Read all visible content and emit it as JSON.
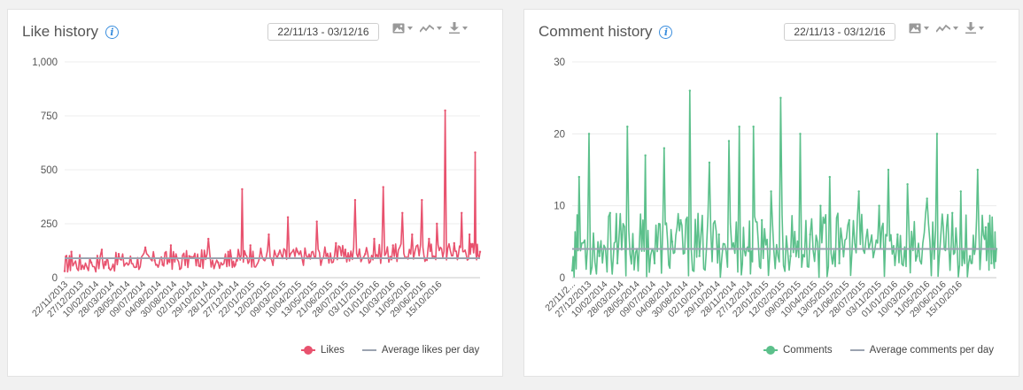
{
  "panels": [
    {
      "title": "Like history",
      "date_range": "22/11/13 - 03/12/16",
      "icons": [
        "info-icon",
        "image-icon",
        "line-chart-icon",
        "download-icon"
      ],
      "legend": {
        "series": "Likes",
        "average": "Average likes per day"
      },
      "colors": {
        "series": "#e8526e",
        "average": "#9ba3b0"
      }
    },
    {
      "title": "Comment history",
      "date_range": "22/11/13 - 03/12/16",
      "icons": [
        "info-icon",
        "image-icon",
        "line-chart-icon",
        "download-icon"
      ],
      "legend": {
        "series": "Comments",
        "average": "Average comments per day"
      },
      "colors": {
        "series": "#5cc08b",
        "average": "#9ba3b0"
      }
    }
  ],
  "chart_data": [
    {
      "type": "line",
      "title": "Like history",
      "ylim": [
        0,
        1000
      ],
      "yticks": [
        0,
        250,
        500,
        750,
        1000
      ],
      "ytick_labels": [
        "0",
        "250",
        "500",
        "750",
        "1,000"
      ],
      "xlim": [
        "2013-11-22",
        "2016-12-03"
      ],
      "xtick_labels": [
        "22/11/2013",
        "27/12/2013",
        "10/02/2014",
        "28/03/2014",
        "28/05/2014",
        "09/07/2014",
        "04/08/2014",
        "30/08/2014",
        "02/10/2014",
        "29/10/2014",
        "28/11/2014",
        "27/12/2014",
        "22/01/2015",
        "12/02/2015",
        "09/03/2015",
        "10/04/2015",
        "13/05/2015",
        "21/06/2015",
        "28/07/2015",
        "03/11/2015",
        "01/01/2016",
        "10/03/2016",
        "11/05/2016",
        "29/06/2016",
        "15/10/2016"
      ],
      "grid": true,
      "legend_position": "bottom-right",
      "average": 90,
      "series": [
        {
          "name": "Likes",
          "color": "#e8526e",
          "x": [
            "2013-11-22",
            "2013-12-10",
            "2014-01-05",
            "2014-02-01",
            "2014-03-01",
            "2014-03-20",
            "2014-04-15",
            "2014-05-10",
            "2014-06-01",
            "2014-06-25",
            "2014-07-20",
            "2014-08-10",
            "2014-09-01",
            "2014-09-25",
            "2014-10-20",
            "2014-11-15",
            "2014-12-10",
            "2015-01-05",
            "2015-02-01",
            "2015-02-20",
            "2015-03-10",
            "2015-04-01",
            "2015-04-25",
            "2015-05-20",
            "2015-06-15",
            "2015-07-10",
            "2015-08-05",
            "2015-09-01",
            "2015-09-25",
            "2015-10-20",
            "2015-11-15",
            "2015-12-10",
            "2016-01-05",
            "2016-02-01",
            "2016-02-25",
            "2016-03-20",
            "2016-04-15",
            "2016-05-10",
            "2016-06-05",
            "2016-07-01",
            "2016-07-20",
            "2016-08-10",
            "2016-09-01",
            "2016-09-25",
            "2016-10-15",
            "2016-11-05",
            "2016-11-20",
            "2016-12-03"
          ],
          "y": [
            30,
            120,
            40,
            70,
            130,
            45,
            110,
            60,
            50,
            140,
            80,
            60,
            150,
            40,
            100,
            55,
            180,
            70,
            120,
            60,
            410,
            150,
            90,
            200,
            110,
            280,
            120,
            90,
            260,
            100,
            160,
            130,
            360,
            110,
            180,
            420,
            150,
            300,
            200,
            360,
            180,
            250,
            775,
            160,
            300,
            200,
            580,
            120
          ]
        }
      ]
    },
    {
      "type": "line",
      "title": "Comment history",
      "ylim": [
        0,
        30
      ],
      "yticks": [
        0,
        10,
        20,
        30
      ],
      "ytick_labels": [
        "0",
        "10",
        "20",
        "30"
      ],
      "xlim": [
        "2013-11-22",
        "2016-12-03"
      ],
      "xtick_labels": [
        "22/11/2...",
        "27/12/2013",
        "10/02/2014",
        "28/03/2014",
        "28/05/2014",
        "09/07/2014",
        "04/08/2014",
        "30/08/2014",
        "02/10/2014",
        "29/10/2014",
        "28/11/2014",
        "27/12/2014",
        "22/01/2015",
        "12/02/2015",
        "09/03/2015",
        "10/04/2015",
        "13/05/2015",
        "21/06/2015",
        "28/07/2015",
        "03/11/2015",
        "01/01/2016",
        "10/03/2016",
        "11/05/2016",
        "29/06/2016",
        "15/10/2016"
      ],
      "grid": true,
      "legend_position": "bottom-right",
      "average": 4,
      "series": [
        {
          "name": "Comments",
          "color": "#5cc08b",
          "x": [
            "2013-11-22",
            "2013-12-10",
            "2014-01-05",
            "2014-02-01",
            "2014-03-01",
            "2014-03-20",
            "2014-04-15",
            "2014-05-10",
            "2014-06-01",
            "2014-06-25",
            "2014-07-20",
            "2014-08-10",
            "2014-09-01",
            "2014-09-25",
            "2014-10-20",
            "2014-11-15",
            "2014-12-10",
            "2015-01-05",
            "2015-02-01",
            "2015-02-20",
            "2015-03-10",
            "2015-04-01",
            "2015-04-25",
            "2015-05-20",
            "2015-06-15",
            "2015-07-10",
            "2015-08-05",
            "2015-09-01",
            "2015-09-25",
            "2015-10-20",
            "2015-11-15",
            "2015-12-10",
            "2016-01-05",
            "2016-02-01",
            "2016-02-25",
            "2016-03-20",
            "2016-04-15",
            "2016-05-10",
            "2016-06-05",
            "2016-07-01",
            "2016-07-20",
            "2016-08-10",
            "2016-09-01",
            "2016-09-25",
            "2016-10-15",
            "2016-11-05",
            "2016-11-20",
            "2016-12-03"
          ],
          "y": [
            1,
            14,
            20,
            3,
            9,
            2,
            21,
            4,
            17,
            2,
            18,
            5,
            8,
            26,
            3,
            16,
            6,
            19,
            21,
            4,
            21,
            8,
            12,
            25,
            3,
            20,
            6,
            10,
            14,
            2,
            8,
            12,
            4,
            10,
            15,
            6,
            13,
            3,
            11,
            20,
            4,
            9,
            12,
            3,
            15,
            7,
            2,
            4
          ]
        }
      ]
    }
  ]
}
